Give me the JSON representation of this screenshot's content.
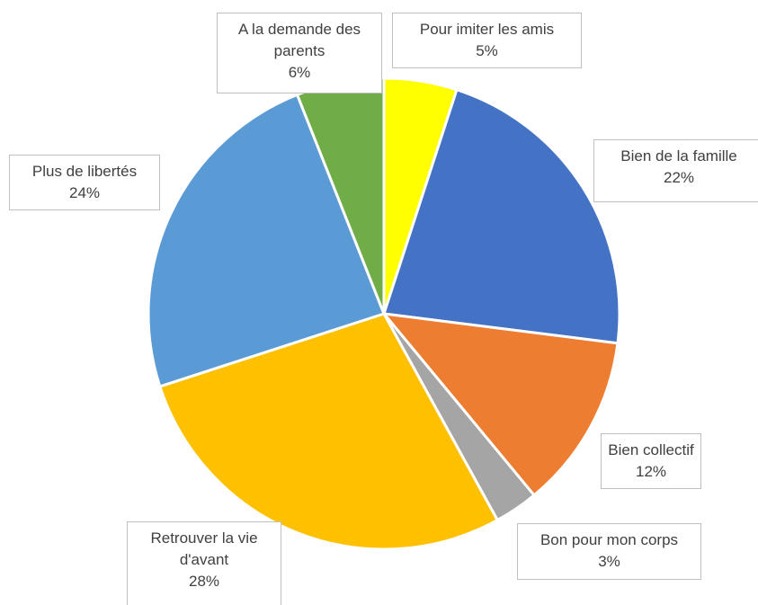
{
  "chart_data": {
    "type": "pie",
    "categories": [
      "Pour imiter les amis",
      "Bien de la famille",
      "Bien collectif",
      "Bon pour mon corps",
      "Retrouver la vie d'avant",
      "Plus de libertés",
      "A la demande des parents"
    ],
    "values": [
      5,
      22,
      12,
      3,
      28,
      24,
      6
    ],
    "value_labels": [
      "5%",
      "22%",
      "12%",
      "3%",
      "28%",
      "24%",
      "6%"
    ],
    "colors": [
      "#ffff00",
      "#4472c4",
      "#ed7d31",
      "#a5a5a5",
      "#ffc000",
      "#5b9bd5",
      "#70ad47"
    ]
  }
}
